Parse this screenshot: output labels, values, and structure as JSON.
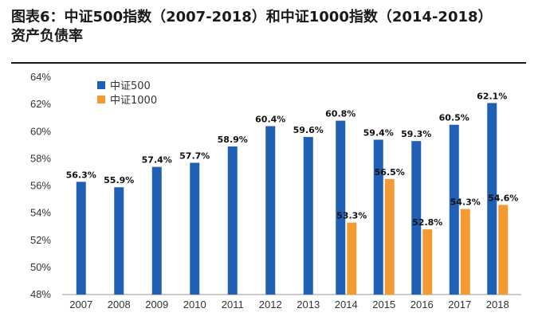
{
  "title": {
    "line1": "图表6：中证500指数（2007-2018）和中证1000指数（2014-2018）",
    "line2": "资产负债率"
  },
  "chart_data": {
    "type": "bar",
    "categories": [
      "2007",
      "2008",
      "2009",
      "2010",
      "2011",
      "2012",
      "2013",
      "2014",
      "2015",
      "2016",
      "2017",
      "2018"
    ],
    "series": [
      {
        "name": "中证500",
        "color": "#1f5fb4",
        "values": [
          56.3,
          55.9,
          57.4,
          57.7,
          58.9,
          60.4,
          59.6,
          60.8,
          59.4,
          59.3,
          60.5,
          62.1
        ],
        "labels": [
          "56.3%",
          "55.9%",
          "57.4%",
          "57.7%",
          "58.9%",
          "60.4%",
          "59.6%",
          "60.8%",
          "59.4%",
          "59.3%",
          "60.5%",
          "62.1%"
        ]
      },
      {
        "name": "中证1000",
        "color": "#f39a32",
        "values": [
          null,
          null,
          null,
          null,
          null,
          null,
          null,
          53.3,
          56.5,
          52.8,
          54.3,
          54.6
        ],
        "labels": [
          null,
          null,
          null,
          null,
          null,
          null,
          null,
          "53.3%",
          "56.5%",
          "52.8%",
          "54.3%",
          "54.6%"
        ]
      }
    ],
    "ylim": [
      48,
      64
    ],
    "yticks": [
      48,
      50,
      52,
      54,
      56,
      58,
      60,
      62,
      64
    ],
    "ytick_labels": [
      "48%",
      "50%",
      "52%",
      "54%",
      "56%",
      "58%",
      "60%",
      "62%",
      "64%"
    ],
    "xlabel": "",
    "ylabel": "",
    "grid": false,
    "legend": "top-left"
  }
}
